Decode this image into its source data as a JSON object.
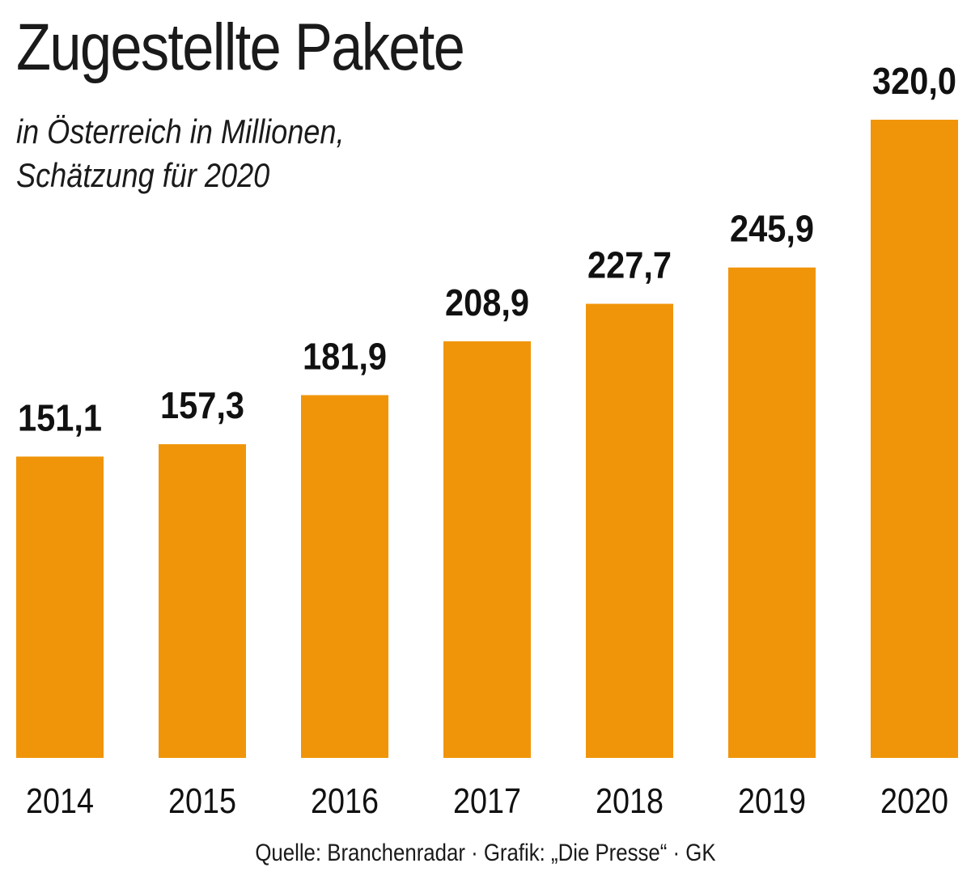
{
  "chart_data": {
    "type": "bar",
    "title": "Zugestellte Pakete",
    "subtitle_lines": [
      "in Österreich in Millionen,",
      "Schätzung für 2020"
    ],
    "categories": [
      "2014",
      "2015",
      "2016",
      "2017",
      "2018",
      "2019",
      "2020"
    ],
    "values": [
      151.1,
      157.3,
      181.9,
      208.9,
      227.7,
      245.9,
      320.0
    ],
    "value_labels": [
      "151,1",
      "157,3",
      "181,9",
      "208,9",
      "227,7",
      "245,9",
      "320,0"
    ],
    "ylim": [
      0,
      320
    ],
    "grid": false,
    "bar_color": "#f0950a",
    "source": "Quelle: Branchenradar · Grafik: „Die Presse“ · GK"
  }
}
